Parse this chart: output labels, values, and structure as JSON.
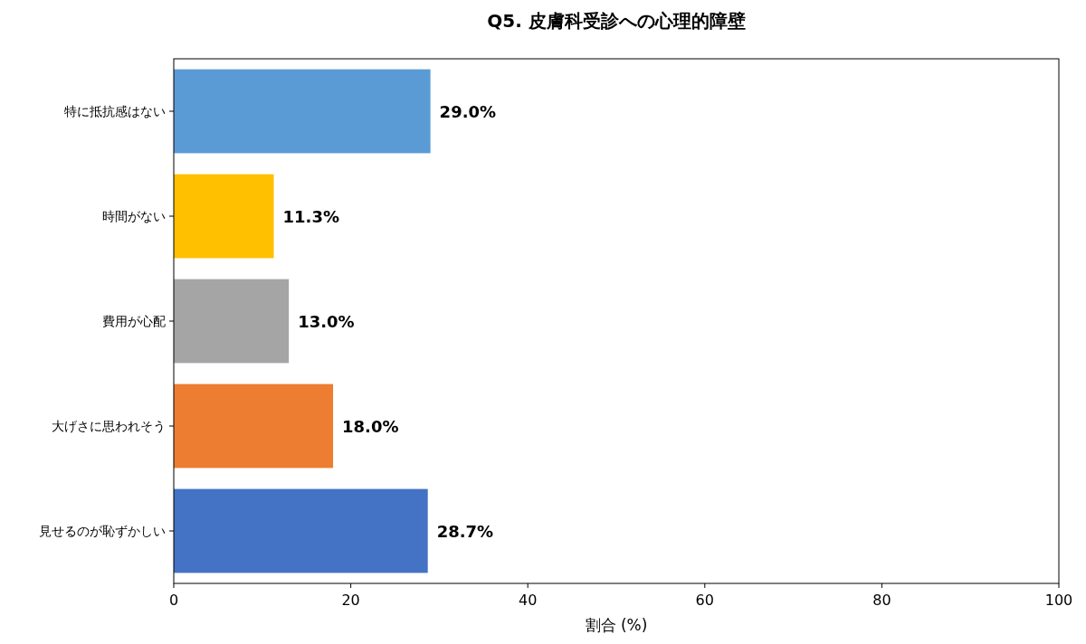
{
  "chart_data": {
    "type": "bar",
    "orientation": "horizontal",
    "title": "Q5. 皮膚科受診への心理的障壁",
    "xlabel": "割合 (%)",
    "categories": [
      "特に抵抗感はない",
      "時間がない",
      "費用が心配",
      "大げさに思われそう",
      "見せるのが恥ずかしい"
    ],
    "values": [
      29.0,
      11.3,
      13.0,
      18.0,
      28.7
    ],
    "colors": [
      "#5b9bd5",
      "#ffc000",
      "#a5a5a5",
      "#ed7d31",
      "#4472c4"
    ],
    "value_labels": [
      "29.0%",
      "11.3%",
      "13.0%",
      "18.0%",
      "28.7%"
    ],
    "xlim": [
      0,
      100
    ],
    "xticks": [
      0,
      20,
      40,
      60,
      80,
      100
    ],
    "grid": false
  }
}
